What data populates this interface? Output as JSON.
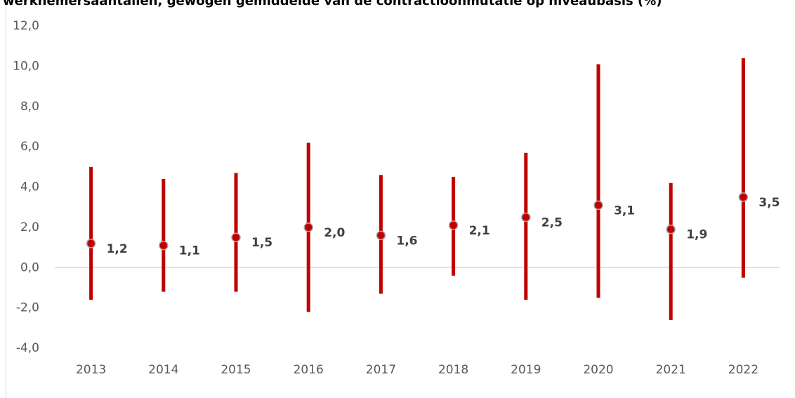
{
  "chart_data": {
    "type": "range",
    "title": "werknemersaantallen, gewogen gemiddelde van de contractloonmutatie op niveaubasis (%)",
    "categories": [
      "2013",
      "2014",
      "2015",
      "2016",
      "2017",
      "2018",
      "2019",
      "2020",
      "2021",
      "2022"
    ],
    "values": [
      1.2,
      1.1,
      1.5,
      2.0,
      1.6,
      2.1,
      2.5,
      3.1,
      1.9,
      3.5
    ],
    "value_labels": [
      "1,2",
      "1,1",
      "1,5",
      "2,0",
      "1,6",
      "2,1",
      "2,5",
      "3,1",
      "1,9",
      "3,5"
    ],
    "low": [
      -1.6,
      -1.2,
      -1.2,
      -2.2,
      -1.3,
      -0.4,
      -1.6,
      -1.5,
      -2.6,
      -0.5
    ],
    "high": [
      5.0,
      4.4,
      4.7,
      6.2,
      4.6,
      4.5,
      5.7,
      10.1,
      4.2,
      10.4
    ],
    "color": "#c00000",
    "ylim": [
      -4,
      12
    ],
    "yticks": [
      {
        "value": -4,
        "label": "-4,0"
      },
      {
        "value": -2,
        "label": "-2,0"
      },
      {
        "value": 0,
        "label": "0,0"
      },
      {
        "value": 2,
        "label": "2,0"
      },
      {
        "value": 4,
        "label": "4,0"
      },
      {
        "value": 6,
        "label": "6,0"
      },
      {
        "value": 8,
        "label": "8,0"
      },
      {
        "value": 10,
        "label": "10,0"
      },
      {
        "value": 12,
        "label": "12,0"
      }
    ],
    "grid": false
  }
}
